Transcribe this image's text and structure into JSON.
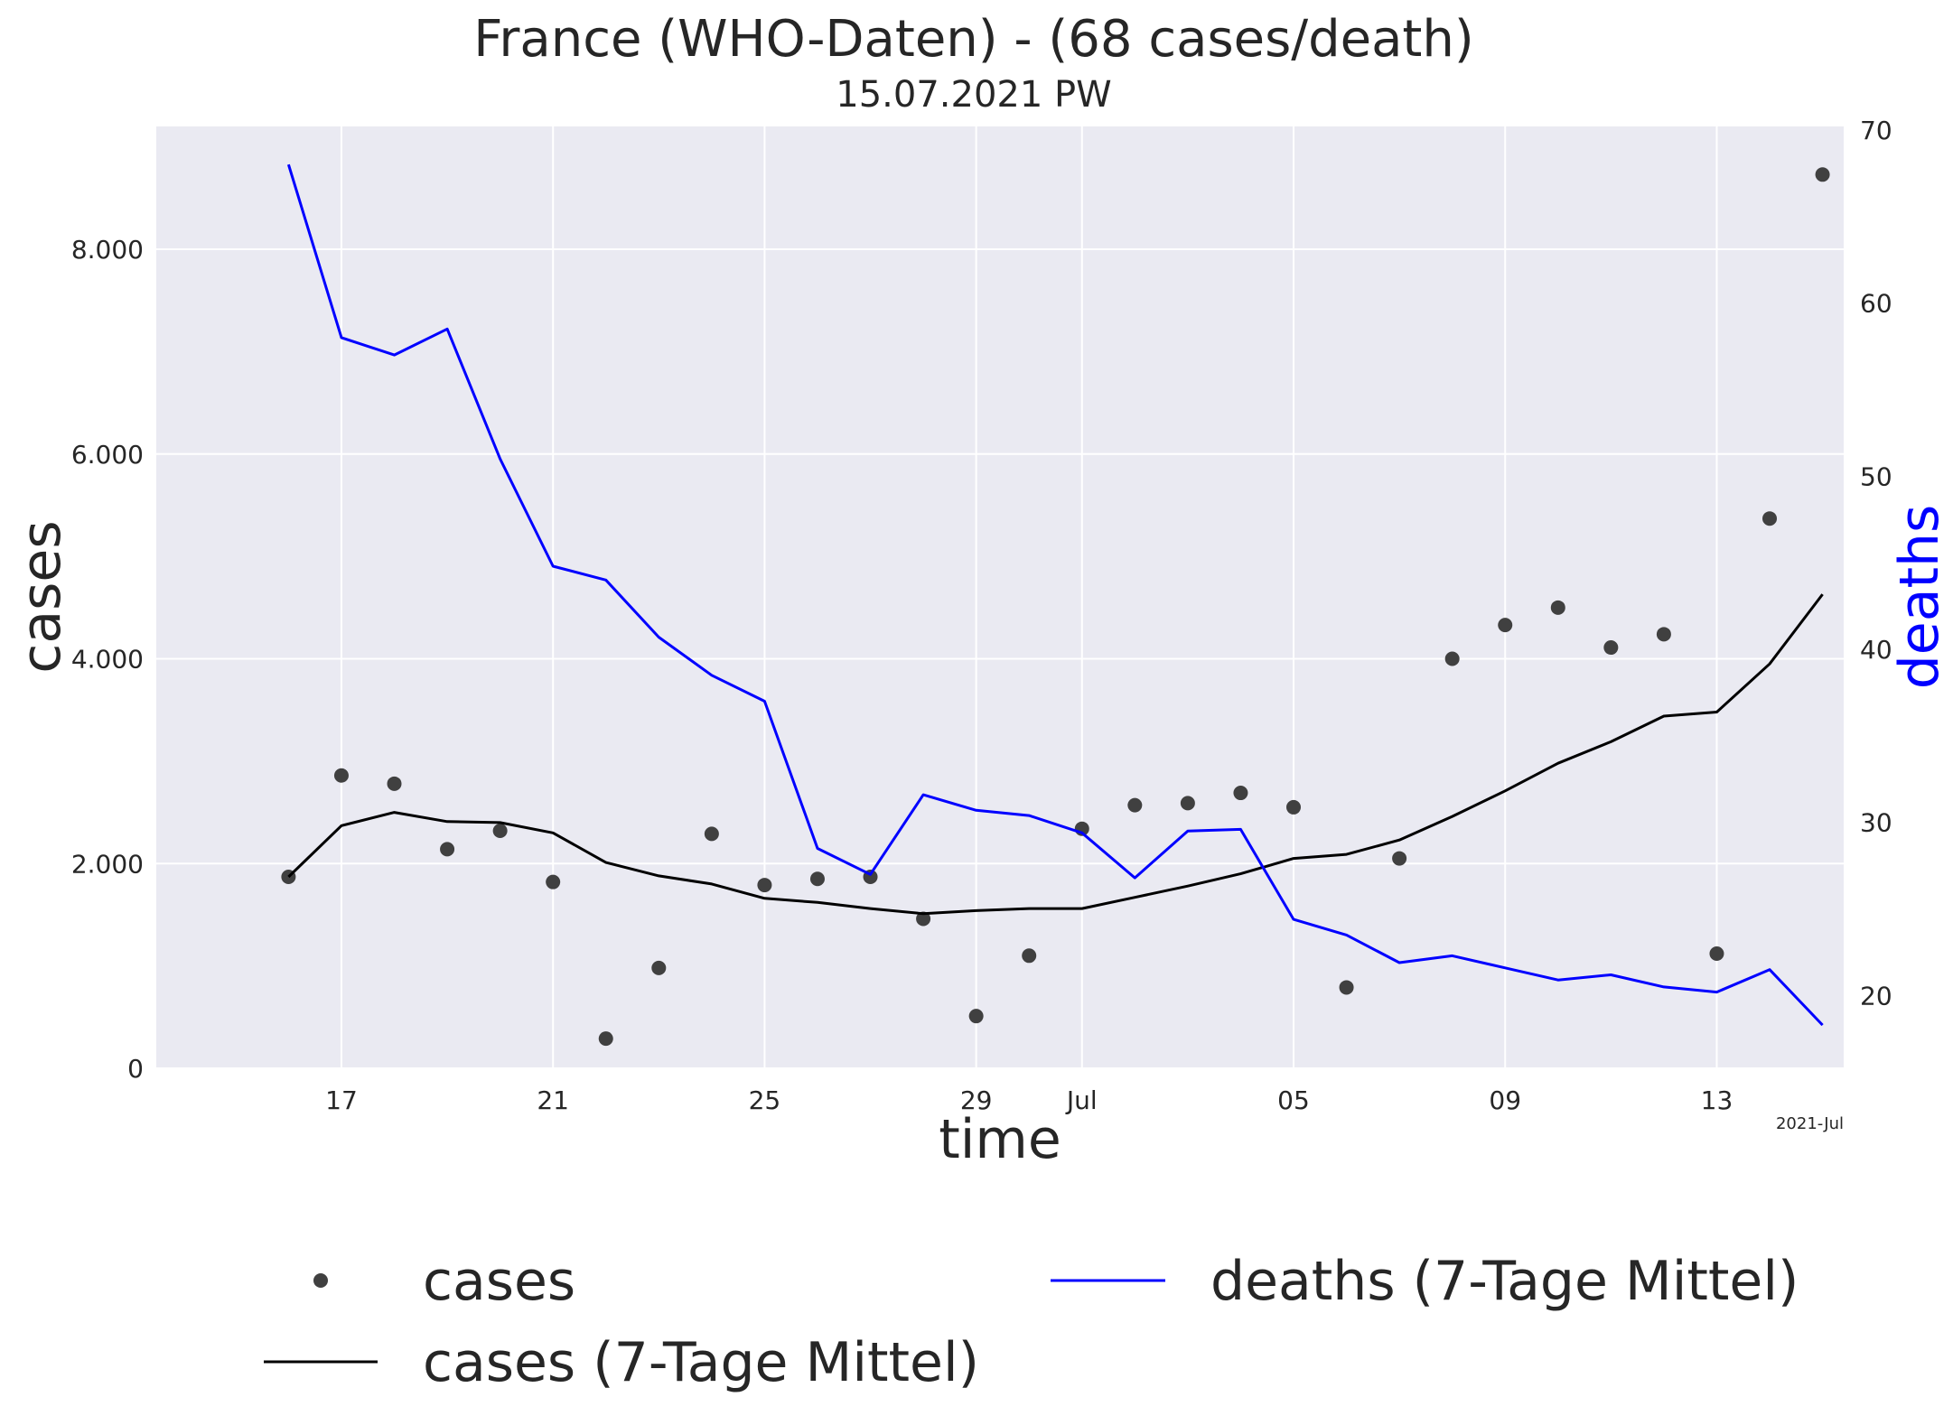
{
  "chart_data": {
    "type": "line",
    "title": "France (WHO-Daten) - (68 cases/death)",
    "subtitle": "15.07.2021 PW",
    "xlabel": "time",
    "ylabel": "cases",
    "y2label": "deaths",
    "x_offset_label": "2021-Jul",
    "x_ticks": [
      {
        "day": 17,
        "label": "17"
      },
      {
        "day": 21,
        "label": "21"
      },
      {
        "day": 25,
        "label": "25"
      },
      {
        "day": 29,
        "label": "29"
      },
      {
        "day": 31,
        "label": "Jul"
      },
      {
        "day": 35,
        "label": "05"
      },
      {
        "day": 39,
        "label": "09"
      },
      {
        "day": 43,
        "label": "13"
      }
    ],
    "y_ticks": [
      {
        "value": 0,
        "label": "0"
      },
      {
        "value": 2000,
        "label": "2.000"
      },
      {
        "value": 4000,
        "label": "4.000"
      },
      {
        "value": 6000,
        "label": "6.000"
      },
      {
        "value": 8000,
        "label": "8.000"
      }
    ],
    "y2_ticks": [
      {
        "value": 20,
        "label": "20"
      },
      {
        "value": 30,
        "label": "30"
      },
      {
        "value": 40,
        "label": "40"
      },
      {
        "value": 50,
        "label": "50"
      },
      {
        "value": 60,
        "label": "60"
      },
      {
        "value": 70,
        "label": "70"
      }
    ],
    "xlim": [
      13.5,
      45.4
    ],
    "ylim": [
      0,
      9200
    ],
    "y2lim": [
      15.8,
      70.2
    ],
    "grid": true,
    "legend_position": "bottom",
    "x": [
      16,
      17,
      18,
      19,
      20,
      21,
      22,
      23,
      24,
      25,
      26,
      27,
      28,
      29,
      30,
      31,
      32,
      33,
      34,
      35,
      36,
      37,
      38,
      39,
      40,
      41,
      42,
      43,
      44,
      45
    ],
    "series": [
      {
        "name": "cases",
        "type": "scatter",
        "axis": "left",
        "color": "#404040",
        "values": [
          1870,
          2860,
          2780,
          2140,
          2320,
          1820,
          290,
          980,
          2290,
          1790,
          1850,
          1870,
          1460,
          510,
          1100,
          2340,
          2570,
          2590,
          2690,
          2550,
          790,
          2050,
          4000,
          4330,
          4500,
          4110,
          4240,
          1120,
          5370,
          8730
        ]
      },
      {
        "name": "cases (7-Tage Mittel)",
        "type": "line",
        "axis": "left",
        "color": "#000000",
        "values": [
          1870,
          2370,
          2500,
          2410,
          2400,
          2300,
          2010,
          1880,
          1800,
          1660,
          1620,
          1560,
          1510,
          1540,
          1560,
          1560,
          1670,
          1780,
          1900,
          2050,
          2090,
          2230,
          2460,
          2710,
          2980,
          3190,
          3440,
          3480,
          3950,
          4630
        ]
      },
      {
        "name": "deaths (7-Tage Mittel)",
        "type": "line",
        "axis": "right",
        "color": "#0000ff",
        "values": [
          68,
          58,
          57,
          58.5,
          51,
          44.8,
          44,
          40.7,
          38.5,
          37,
          28.5,
          27,
          31.6,
          30.7,
          30.4,
          29.4,
          26.8,
          29.5,
          29.6,
          24.4,
          23.5,
          21.9,
          22.3,
          21.6,
          20.9,
          21.2,
          20.5,
          20.2,
          21.5,
          18.3
        ]
      }
    ]
  }
}
